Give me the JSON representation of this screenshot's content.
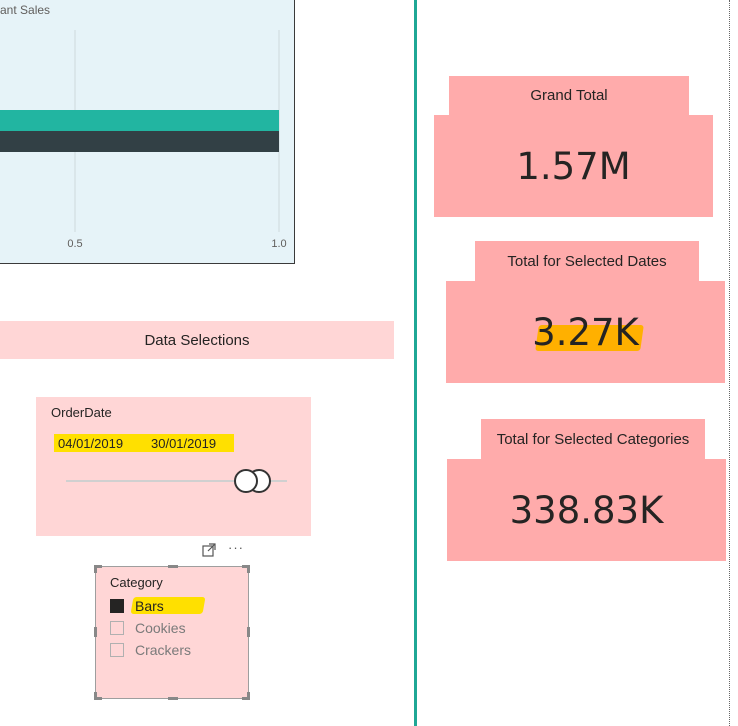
{
  "chart": {
    "title_fragment": "ant Sales"
  },
  "chart_data": {
    "type": "bar",
    "orientation": "horizontal",
    "title": "ant Sales",
    "x_ticks": [
      "0.5",
      "1.0"
    ],
    "xlim": [
      0,
      1.0
    ],
    "series": [
      {
        "values": [
          1.0
        ],
        "color": "#22b5a1"
      },
      {
        "values": [
          1.0
        ],
        "color": "#324045"
      }
    ],
    "grid": true
  },
  "data_selections": {
    "label": "Data Selections"
  },
  "date_slicer": {
    "title": "OrderDate",
    "start": "04/01/2019",
    "end": "30/01/2019"
  },
  "category_slicer": {
    "title": "Category",
    "items": [
      {
        "label": "Bars",
        "checked": true
      },
      {
        "label": "Cookies",
        "checked": false
      },
      {
        "label": "Crackers",
        "checked": false
      }
    ],
    "focus_icon": "focus-mode-icon",
    "more_icon": "more-options-icon"
  },
  "kpis": [
    {
      "title": "Grand Total",
      "value": "1.57M"
    },
    {
      "title": "Total for Selected Dates",
      "value": "3.27K"
    },
    {
      "title": "Total for Selected Categories",
      "value": "338.83K"
    }
  ],
  "colors": {
    "accent_teal": "#1fa795",
    "card_pink": "#ffabab",
    "panel_pink": "#ffd6d6",
    "highlight_yellow": "#ffe000",
    "highlight_orange": "#ffb000"
  }
}
